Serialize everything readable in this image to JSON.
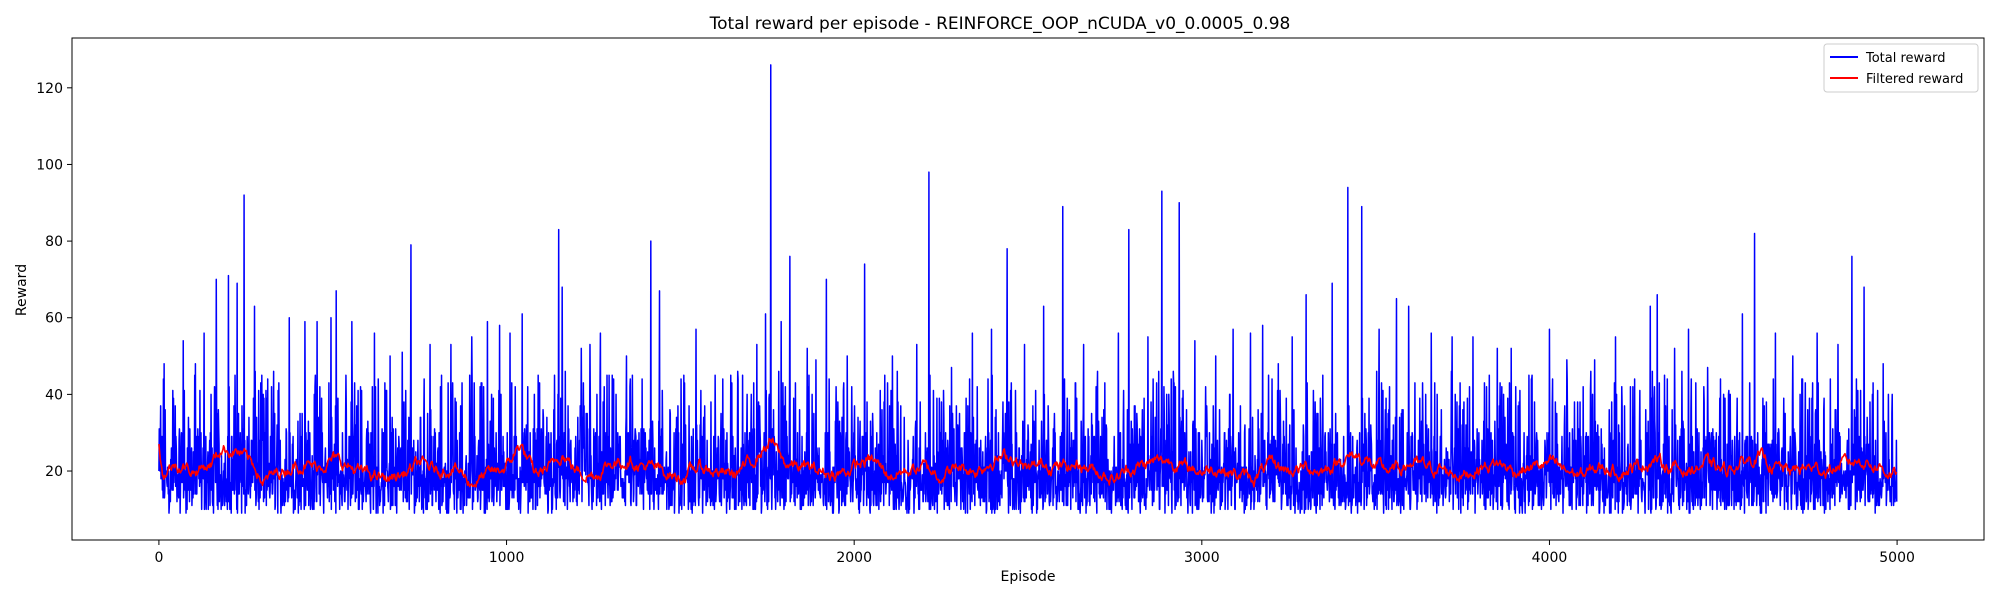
{
  "chart_data": {
    "type": "line",
    "title": "Total reward per episode - REINFORCE_OOP_nCUDA_v0_0.0005_0.98",
    "xlabel": "Episode",
    "ylabel": "Reward",
    "xlim": [
      -250,
      5250
    ],
    "ylim": [
      2,
      133
    ],
    "x_ticks": [
      0,
      1000,
      2000,
      3000,
      4000,
      5000
    ],
    "y_ticks": [
      20,
      40,
      60,
      80,
      100,
      120
    ],
    "grid": false,
    "legend_position": "upper right",
    "episodes": 5000,
    "series": [
      {
        "name": "Total reward",
        "color": "#0000ff",
        "style": "noisy per-episode rewards, mostly 9-45",
        "min": 8,
        "typical_range": [
          9,
          45
        ],
        "peaks": [
          {
            "x": 5,
            "y": 37
          },
          {
            "x": 15,
            "y": 48
          },
          {
            "x": 40,
            "y": 41
          },
          {
            "x": 70,
            "y": 54
          },
          {
            "x": 105,
            "y": 48
          },
          {
            "x": 130,
            "y": 56
          },
          {
            "x": 165,
            "y": 70
          },
          {
            "x": 200,
            "y": 71
          },
          {
            "x": 225,
            "y": 69
          },
          {
            "x": 245,
            "y": 92
          },
          {
            "x": 275,
            "y": 63
          },
          {
            "x": 330,
            "y": 46
          },
          {
            "x": 375,
            "y": 60
          },
          {
            "x": 420,
            "y": 59
          },
          {
            "x": 455,
            "y": 59
          },
          {
            "x": 495,
            "y": 60
          },
          {
            "x": 510,
            "y": 67
          },
          {
            "x": 555,
            "y": 59
          },
          {
            "x": 620,
            "y": 56
          },
          {
            "x": 665,
            "y": 50
          },
          {
            "x": 700,
            "y": 51
          },
          {
            "x": 725,
            "y": 79
          },
          {
            "x": 780,
            "y": 53
          },
          {
            "x": 840,
            "y": 53
          },
          {
            "x": 900,
            "y": 55
          },
          {
            "x": 945,
            "y": 59
          },
          {
            "x": 980,
            "y": 58
          },
          {
            "x": 1010,
            "y": 56
          },
          {
            "x": 1045,
            "y": 61
          },
          {
            "x": 1080,
            "y": 40
          },
          {
            "x": 1150,
            "y": 83
          },
          {
            "x": 1160,
            "y": 68
          },
          {
            "x": 1215,
            "y": 52
          },
          {
            "x": 1240,
            "y": 53
          },
          {
            "x": 1270,
            "y": 56
          },
          {
            "x": 1345,
            "y": 50
          },
          {
            "x": 1390,
            "y": 44
          },
          {
            "x": 1415,
            "y": 80
          },
          {
            "x": 1440,
            "y": 67
          },
          {
            "x": 1510,
            "y": 45
          },
          {
            "x": 1545,
            "y": 57
          },
          {
            "x": 1600,
            "y": 45
          },
          {
            "x": 1665,
            "y": 46
          },
          {
            "x": 1720,
            "y": 53
          },
          {
            "x": 1745,
            "y": 61
          },
          {
            "x": 1760,
            "y": 126
          },
          {
            "x": 1790,
            "y": 59
          },
          {
            "x": 1815,
            "y": 76
          },
          {
            "x": 1865,
            "y": 52
          },
          {
            "x": 1890,
            "y": 49
          },
          {
            "x": 1920,
            "y": 70
          },
          {
            "x": 1980,
            "y": 50
          },
          {
            "x": 2030,
            "y": 74
          },
          {
            "x": 2110,
            "y": 50
          },
          {
            "x": 2180,
            "y": 53
          },
          {
            "x": 2215,
            "y": 98
          },
          {
            "x": 2280,
            "y": 47
          },
          {
            "x": 2340,
            "y": 56
          },
          {
            "x": 2395,
            "y": 57
          },
          {
            "x": 2440,
            "y": 78
          },
          {
            "x": 2490,
            "y": 53
          },
          {
            "x": 2545,
            "y": 63
          },
          {
            "x": 2600,
            "y": 89
          },
          {
            "x": 2660,
            "y": 53
          },
          {
            "x": 2700,
            "y": 46
          },
          {
            "x": 2760,
            "y": 56
          },
          {
            "x": 2790,
            "y": 83
          },
          {
            "x": 2845,
            "y": 55
          },
          {
            "x": 2885,
            "y": 93
          },
          {
            "x": 2935,
            "y": 90
          },
          {
            "x": 2980,
            "y": 54
          },
          {
            "x": 3040,
            "y": 50
          },
          {
            "x": 3090,
            "y": 57
          },
          {
            "x": 3140,
            "y": 56
          },
          {
            "x": 3175,
            "y": 58
          },
          {
            "x": 3220,
            "y": 48
          },
          {
            "x": 3260,
            "y": 55
          },
          {
            "x": 3300,
            "y": 66
          },
          {
            "x": 3375,
            "y": 69
          },
          {
            "x": 3420,
            "y": 94
          },
          {
            "x": 3460,
            "y": 89
          },
          {
            "x": 3510,
            "y": 57
          },
          {
            "x": 3560,
            "y": 65
          },
          {
            "x": 3595,
            "y": 63
          },
          {
            "x": 3660,
            "y": 56
          },
          {
            "x": 3720,
            "y": 55
          },
          {
            "x": 3780,
            "y": 55
          },
          {
            "x": 3850,
            "y": 52
          },
          {
            "x": 3890,
            "y": 52
          },
          {
            "x": 3950,
            "y": 45
          },
          {
            "x": 4000,
            "y": 57
          },
          {
            "x": 4050,
            "y": 49
          },
          {
            "x": 4130,
            "y": 49
          },
          {
            "x": 4190,
            "y": 55
          },
          {
            "x": 4245,
            "y": 44
          },
          {
            "x": 4290,
            "y": 63
          },
          {
            "x": 4310,
            "y": 66
          },
          {
            "x": 4360,
            "y": 52
          },
          {
            "x": 4400,
            "y": 57
          },
          {
            "x": 4455,
            "y": 47
          },
          {
            "x": 4520,
            "y": 40
          },
          {
            "x": 4555,
            "y": 61
          },
          {
            "x": 4590,
            "y": 82
          },
          {
            "x": 4650,
            "y": 56
          },
          {
            "x": 4700,
            "y": 50
          },
          {
            "x": 4770,
            "y": 56
          },
          {
            "x": 4830,
            "y": 53
          },
          {
            "x": 4870,
            "y": 76
          },
          {
            "x": 4905,
            "y": 68
          },
          {
            "x": 4960,
            "y": 48
          }
        ]
      },
      {
        "name": "Filtered reward",
        "color": "#ff0000",
        "style": "smoothed moving average",
        "points": [
          {
            "x": 0,
            "y": 27
          },
          {
            "x": 10,
            "y": 19
          },
          {
            "x": 50,
            "y": 22
          },
          {
            "x": 100,
            "y": 20
          },
          {
            "x": 150,
            "y": 22
          },
          {
            "x": 180,
            "y": 26
          },
          {
            "x": 230,
            "y": 25
          },
          {
            "x": 280,
            "y": 21
          },
          {
            "x": 300,
            "y": 17
          },
          {
            "x": 350,
            "y": 20
          },
          {
            "x": 400,
            "y": 22
          },
          {
            "x": 450,
            "y": 21
          },
          {
            "x": 500,
            "y": 23
          },
          {
            "x": 550,
            "y": 21
          },
          {
            "x": 600,
            "y": 19
          },
          {
            "x": 650,
            "y": 18
          },
          {
            "x": 700,
            "y": 19
          },
          {
            "x": 750,
            "y": 22
          },
          {
            "x": 800,
            "y": 20
          },
          {
            "x": 850,
            "y": 21
          },
          {
            "x": 900,
            "y": 17
          },
          {
            "x": 950,
            "y": 19
          },
          {
            "x": 1000,
            "y": 21
          },
          {
            "x": 1040,
            "y": 27
          },
          {
            "x": 1080,
            "y": 19
          },
          {
            "x": 1130,
            "y": 21
          },
          {
            "x": 1160,
            "y": 25
          },
          {
            "x": 1200,
            "y": 20
          },
          {
            "x": 1250,
            "y": 19
          },
          {
            "x": 1300,
            "y": 22
          },
          {
            "x": 1350,
            "y": 23
          },
          {
            "x": 1400,
            "y": 21
          },
          {
            "x": 1450,
            "y": 20
          },
          {
            "x": 1500,
            "y": 18
          },
          {
            "x": 1550,
            "y": 21
          },
          {
            "x": 1600,
            "y": 20
          },
          {
            "x": 1650,
            "y": 19
          },
          {
            "x": 1700,
            "y": 22
          },
          {
            "x": 1760,
            "y": 28
          },
          {
            "x": 1800,
            "y": 22
          },
          {
            "x": 1850,
            "y": 21
          },
          {
            "x": 1900,
            "y": 20
          },
          {
            "x": 1950,
            "y": 19
          },
          {
            "x": 2000,
            "y": 21
          },
          {
            "x": 2050,
            "y": 23
          },
          {
            "x": 2100,
            "y": 19
          },
          {
            "x": 2150,
            "y": 20
          },
          {
            "x": 2200,
            "y": 21
          },
          {
            "x": 2250,
            "y": 19
          },
          {
            "x": 2300,
            "y": 21
          },
          {
            "x": 2350,
            "y": 20
          },
          {
            "x": 2400,
            "y": 23
          },
          {
            "x": 2450,
            "y": 24
          },
          {
            "x": 2500,
            "y": 20
          },
          {
            "x": 2550,
            "y": 22
          },
          {
            "x": 2600,
            "y": 21
          },
          {
            "x": 2650,
            "y": 22
          },
          {
            "x": 2700,
            "y": 20
          },
          {
            "x": 2750,
            "y": 18
          },
          {
            "x": 2800,
            "y": 21
          },
          {
            "x": 2850,
            "y": 22
          },
          {
            "x": 2900,
            "y": 23
          },
          {
            "x": 2950,
            "y": 21
          },
          {
            "x": 3000,
            "y": 20
          },
          {
            "x": 3050,
            "y": 21
          },
          {
            "x": 3100,
            "y": 19
          },
          {
            "x": 3150,
            "y": 18
          },
          {
            "x": 3200,
            "y": 22
          },
          {
            "x": 3250,
            "y": 20
          },
          {
            "x": 3300,
            "y": 21
          },
          {
            "x": 3350,
            "y": 20
          },
          {
            "x": 3400,
            "y": 23
          },
          {
            "x": 3450,
            "y": 24
          },
          {
            "x": 3500,
            "y": 21
          },
          {
            "x": 3550,
            "y": 20
          },
          {
            "x": 3600,
            "y": 22
          },
          {
            "x": 3650,
            "y": 21
          },
          {
            "x": 3700,
            "y": 20
          },
          {
            "x": 3750,
            "y": 19
          },
          {
            "x": 3800,
            "y": 21
          },
          {
            "x": 3850,
            "y": 22
          },
          {
            "x": 3900,
            "y": 20
          },
          {
            "x": 3950,
            "y": 21
          },
          {
            "x": 4000,
            "y": 22
          },
          {
            "x": 4050,
            "y": 20
          },
          {
            "x": 4100,
            "y": 19
          },
          {
            "x": 4150,
            "y": 21
          },
          {
            "x": 4200,
            "y": 20
          },
          {
            "x": 4250,
            "y": 21
          },
          {
            "x": 4300,
            "y": 23
          },
          {
            "x": 4350,
            "y": 21
          },
          {
            "x": 4400,
            "y": 20
          },
          {
            "x": 4450,
            "y": 22
          },
          {
            "x": 4500,
            "y": 20
          },
          {
            "x": 4550,
            "y": 22
          },
          {
            "x": 4600,
            "y": 24
          },
          {
            "x": 4650,
            "y": 21
          },
          {
            "x": 4700,
            "y": 20
          },
          {
            "x": 4750,
            "y": 21
          },
          {
            "x": 4800,
            "y": 20
          },
          {
            "x": 4850,
            "y": 22
          },
          {
            "x": 4900,
            "y": 23
          },
          {
            "x": 4950,
            "y": 21
          },
          {
            "x": 4990,
            "y": 19
          }
        ]
      }
    ]
  }
}
